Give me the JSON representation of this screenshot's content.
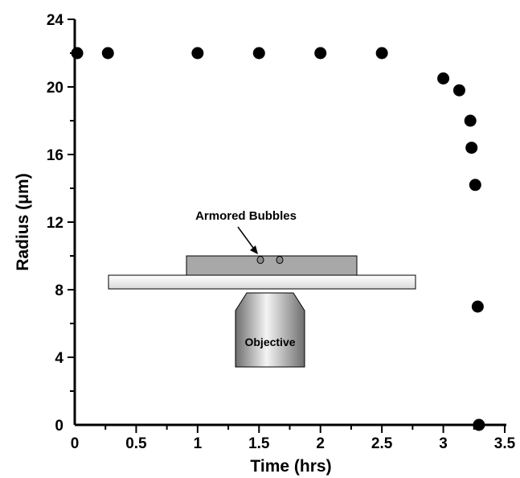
{
  "chart_data": {
    "type": "scatter",
    "title": "",
    "xlabel": "Time (hrs)",
    "ylabel": "Radius (μm)",
    "xlim": [
      0,
      3.5
    ],
    "ylim": [
      0,
      24
    ],
    "x_ticks": [
      0,
      0.5,
      1,
      1.5,
      2,
      2.5,
      3,
      3.5
    ],
    "x_tick_labels": [
      "0",
      "0.5",
      "1",
      "1.5",
      "2",
      "2.5",
      "3",
      "3.5"
    ],
    "y_ticks": [
      0,
      4,
      8,
      12,
      16,
      20,
      24
    ],
    "y_tick_labels": [
      "0",
      "4",
      "8",
      "12",
      "16",
      "20",
      "24"
    ],
    "grid": false,
    "series": [
      {
        "points": [
          {
            "x": 0.02,
            "y": 22.0
          },
          {
            "x": 0.27,
            "y": 22.0
          },
          {
            "x": 1.0,
            "y": 22.0
          },
          {
            "x": 1.5,
            "y": 22.0
          },
          {
            "x": 2.0,
            "y": 22.0
          },
          {
            "x": 2.5,
            "y": 22.0
          },
          {
            "x": 3.0,
            "y": 20.5
          },
          {
            "x": 3.13,
            "y": 19.8
          },
          {
            "x": 3.22,
            "y": 18.0
          },
          {
            "x": 3.23,
            "y": 16.4
          },
          {
            "x": 3.26,
            "y": 14.2
          },
          {
            "x": 3.28,
            "y": 7.0
          },
          {
            "x": 3.29,
            "y": 0.0
          }
        ]
      }
    ],
    "inset": {
      "annotation": "Armored Bubbles",
      "objective_label": "Objective"
    },
    "colors": {
      "marker": "#000000",
      "slide": "#f0f0f0",
      "cover": "#a8a8a8"
    }
  }
}
